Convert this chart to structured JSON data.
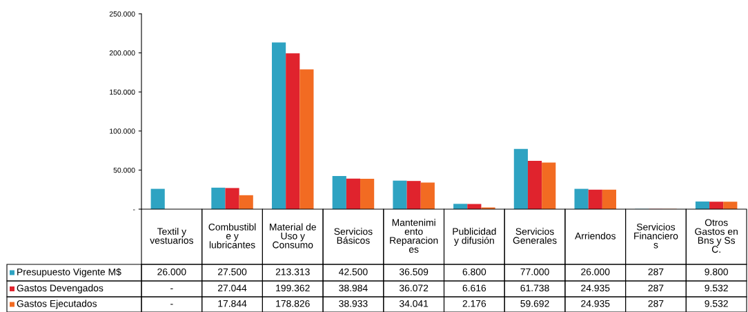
{
  "chart_data": {
    "type": "bar",
    "categories": [
      "Textil y\nvestuarios",
      "Combustibl\ne y\nlubricantes",
      "Material de\nUso y\nConsumo",
      "Servicios\nBásicos",
      "Mantenimi\nento\nReparacion\nes",
      "Publicidad\ny difusión",
      "Servicios\nGenerales",
      "Arriendos",
      "Servicios\nFinanciero\ns",
      "Otros\nGastos en\nBns y Ss\nC."
    ],
    "series": [
      {
        "name": "Presupuesto Vigente M$",
        "color": "#2ea3c2",
        "values": [
          26000,
          27500,
          213313,
          42500,
          36509,
          6800,
          77000,
          26000,
          287,
          9800
        ],
        "value_labels": [
          "26.000",
          "27.500",
          "213.313",
          "42.500",
          "36.509",
          "6.800",
          "77.000",
          "26.000",
          "287",
          "9.800"
        ]
      },
      {
        "name": "Gastos Devengados",
        "color": "#e0232d",
        "values": [
          null,
          27044,
          199362,
          38984,
          36072,
          6616,
          61738,
          24935,
          287,
          9532
        ],
        "value_labels": [
          "-",
          "27.044",
          "199.362",
          "38.984",
          "36.072",
          "6.616",
          "61.738",
          "24.935",
          "287",
          "9.532"
        ]
      },
      {
        "name": "Gastos Ejecutados",
        "color": "#f26b22",
        "values": [
          null,
          17844,
          178826,
          38933,
          34041,
          2176,
          59692,
          24935,
          287,
          9532
        ],
        "value_labels": [
          "-",
          "17.844",
          "178.826",
          "38.933",
          "34.041",
          "2.176",
          "59.692",
          "24.935",
          "287",
          "9.532"
        ]
      }
    ],
    "ylim": [
      0,
      250000
    ],
    "yticks": [
      {
        "value": 0,
        "label": "-"
      },
      {
        "value": 50000,
        "label": "50.000"
      },
      {
        "value": 100000,
        "label": "100.000"
      },
      {
        "value": 150000,
        "label": "150.000"
      },
      {
        "value": 200000,
        "label": "200.000"
      },
      {
        "value": 250000,
        "label": "250.000"
      }
    ],
    "grid": false,
    "legend": "bottom left"
  }
}
